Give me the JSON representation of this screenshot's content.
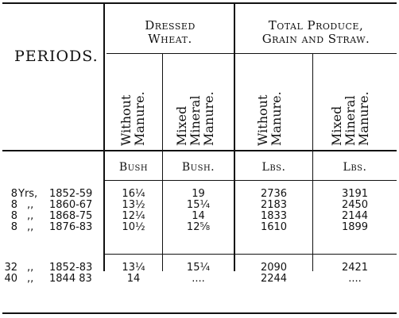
{
  "table": {
    "periods_label": "PERIODS.",
    "group1_line1": "Dressed",
    "group1_line2": "Wheat.",
    "group2_line1": "Total Produce,",
    "group2_line2": "Grain and Straw.",
    "sub_without_1": "Without",
    "sub_without_2": "Manure.",
    "sub_mixed_1": "Mixed",
    "sub_mixed_2": "Mineral",
    "sub_mixed_3": "Manure.",
    "sub_without2_1": "Without",
    "sub_without2_2": "Manure.",
    "sub_mixed2_1": "Mixed",
    "sub_mixed2_2": "Mineral",
    "sub_mixed2_3": "Manure.",
    "unit_1": "Bush",
    "unit_2": "Bush.",
    "unit_3": "Lbs.",
    "unit_4": "Lbs.",
    "rows": [
      {
        "count": "8",
        "unit": "Yrs,",
        "years": "1852-59",
        "w_without": "16¼",
        "w_mixed": "19",
        "t_without": "2736",
        "t_mixed": "3191"
      },
      {
        "count": "8",
        "unit": ",,",
        "years": "1860-67",
        "w_without": "13½",
        "w_mixed": "15¼",
        "t_without": "2183",
        "t_mixed": "2450"
      },
      {
        "count": "8",
        "unit": ",,",
        "years": "1868-75",
        "w_without": "12¼",
        "w_mixed": "14",
        "t_without": "1833",
        "t_mixed": "2144"
      },
      {
        "count": "8",
        "unit": ",,",
        "years": "1876-83",
        "w_without": "10½",
        "w_mixed": "12⅝",
        "t_without": "1610",
        "t_mixed": "1899"
      },
      {
        "count": "32",
        "unit": ",,",
        "years": "1852-83",
        "w_without": "13¼",
        "w_mixed": "15¼",
        "t_without": "2090",
        "t_mixed": "2421"
      },
      {
        "count": "40",
        "unit": ",,",
        "years": "1844 83",
        "w_without": "14",
        "w_mixed": "....",
        "t_without": "2244",
        "t_mixed": "...."
      }
    ]
  }
}
